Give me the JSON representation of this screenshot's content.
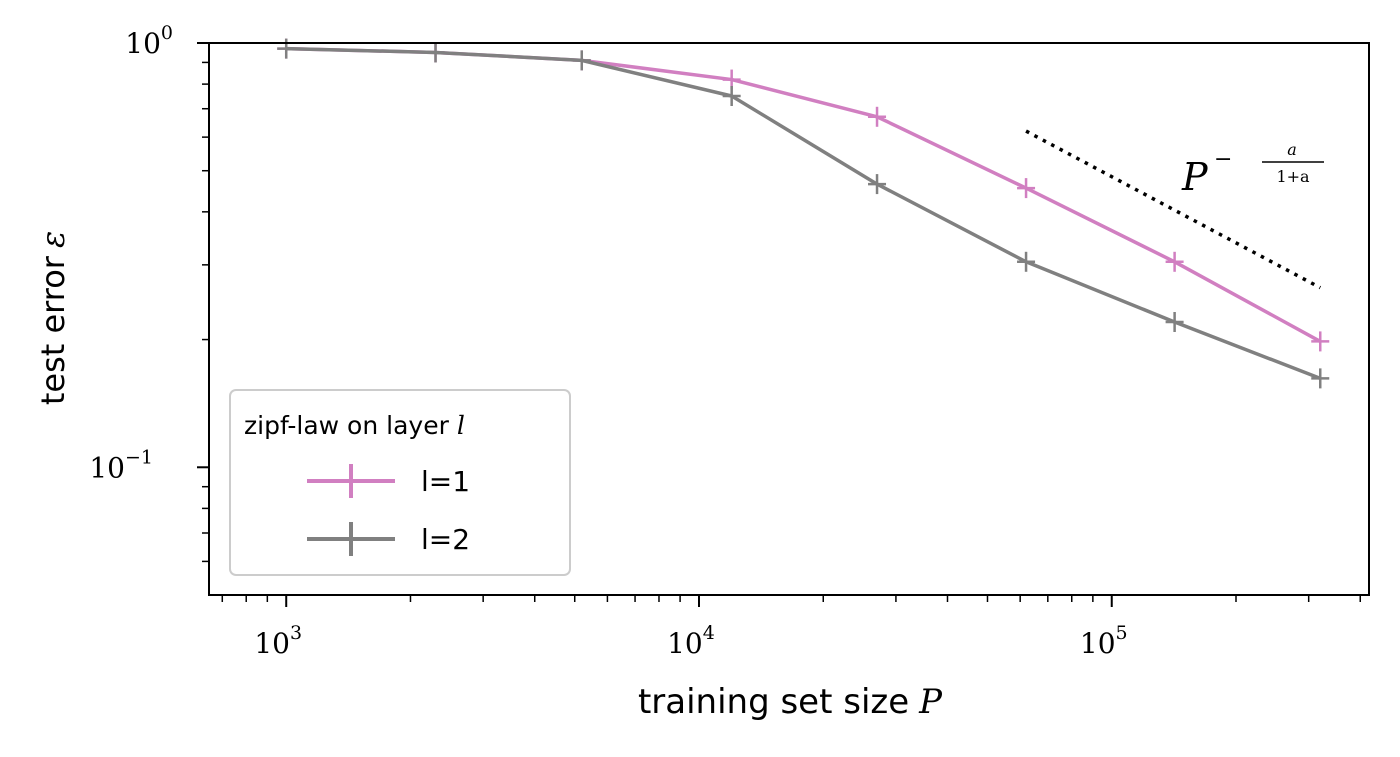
{
  "chart_data": {
    "type": "line",
    "xlabel": "training set size",
    "xlabel_var": "P",
    "ylabel": "test error",
    "ylabel_var": "ε",
    "x_scale": "log",
    "y_scale": "log",
    "xlim": [
      650,
      420000
    ],
    "ylim": [
      0.05,
      1.0
    ],
    "x_ticks": [
      {
        "value": 1000,
        "base": "10",
        "exp": "3"
      },
      {
        "value": 10000,
        "base": "10",
        "exp": "4"
      },
      {
        "value": 100000,
        "base": "10",
        "exp": "5"
      }
    ],
    "y_ticks": [
      {
        "value": 1.0,
        "base": "10",
        "exp": "0"
      },
      {
        "value": 0.1,
        "base": "10",
        "exp": "−1"
      }
    ],
    "grid": false,
    "legend": {
      "title": "zipf-law on layer",
      "title_var": "l",
      "placement": "lower-left",
      "entries": [
        "l=1",
        "l=2"
      ]
    },
    "series": [
      {
        "name": "l=1",
        "color": "#d17fc1",
        "x": [
          1000,
          2300,
          5200,
          12000,
          27000,
          62000,
          142000,
          320000
        ],
        "y": [
          0.97,
          0.95,
          0.91,
          0.82,
          0.67,
          0.455,
          0.305,
          0.198
        ]
      },
      {
        "name": "l=2",
        "color": "#808080",
        "x": [
          1000,
          2300,
          5200,
          12000,
          27000,
          62000,
          142000,
          320000
        ],
        "y": [
          0.97,
          0.95,
          0.91,
          0.75,
          0.465,
          0.305,
          0.22,
          0.162
        ]
      }
    ],
    "reference_line": {
      "style": "dotted",
      "color": "#000000",
      "x": [
        62000,
        320000
      ],
      "y": [
        0.62,
        0.265
      ],
      "label_base": "P",
      "label_exp_num": "a",
      "label_exp_den": "1+a"
    }
  }
}
